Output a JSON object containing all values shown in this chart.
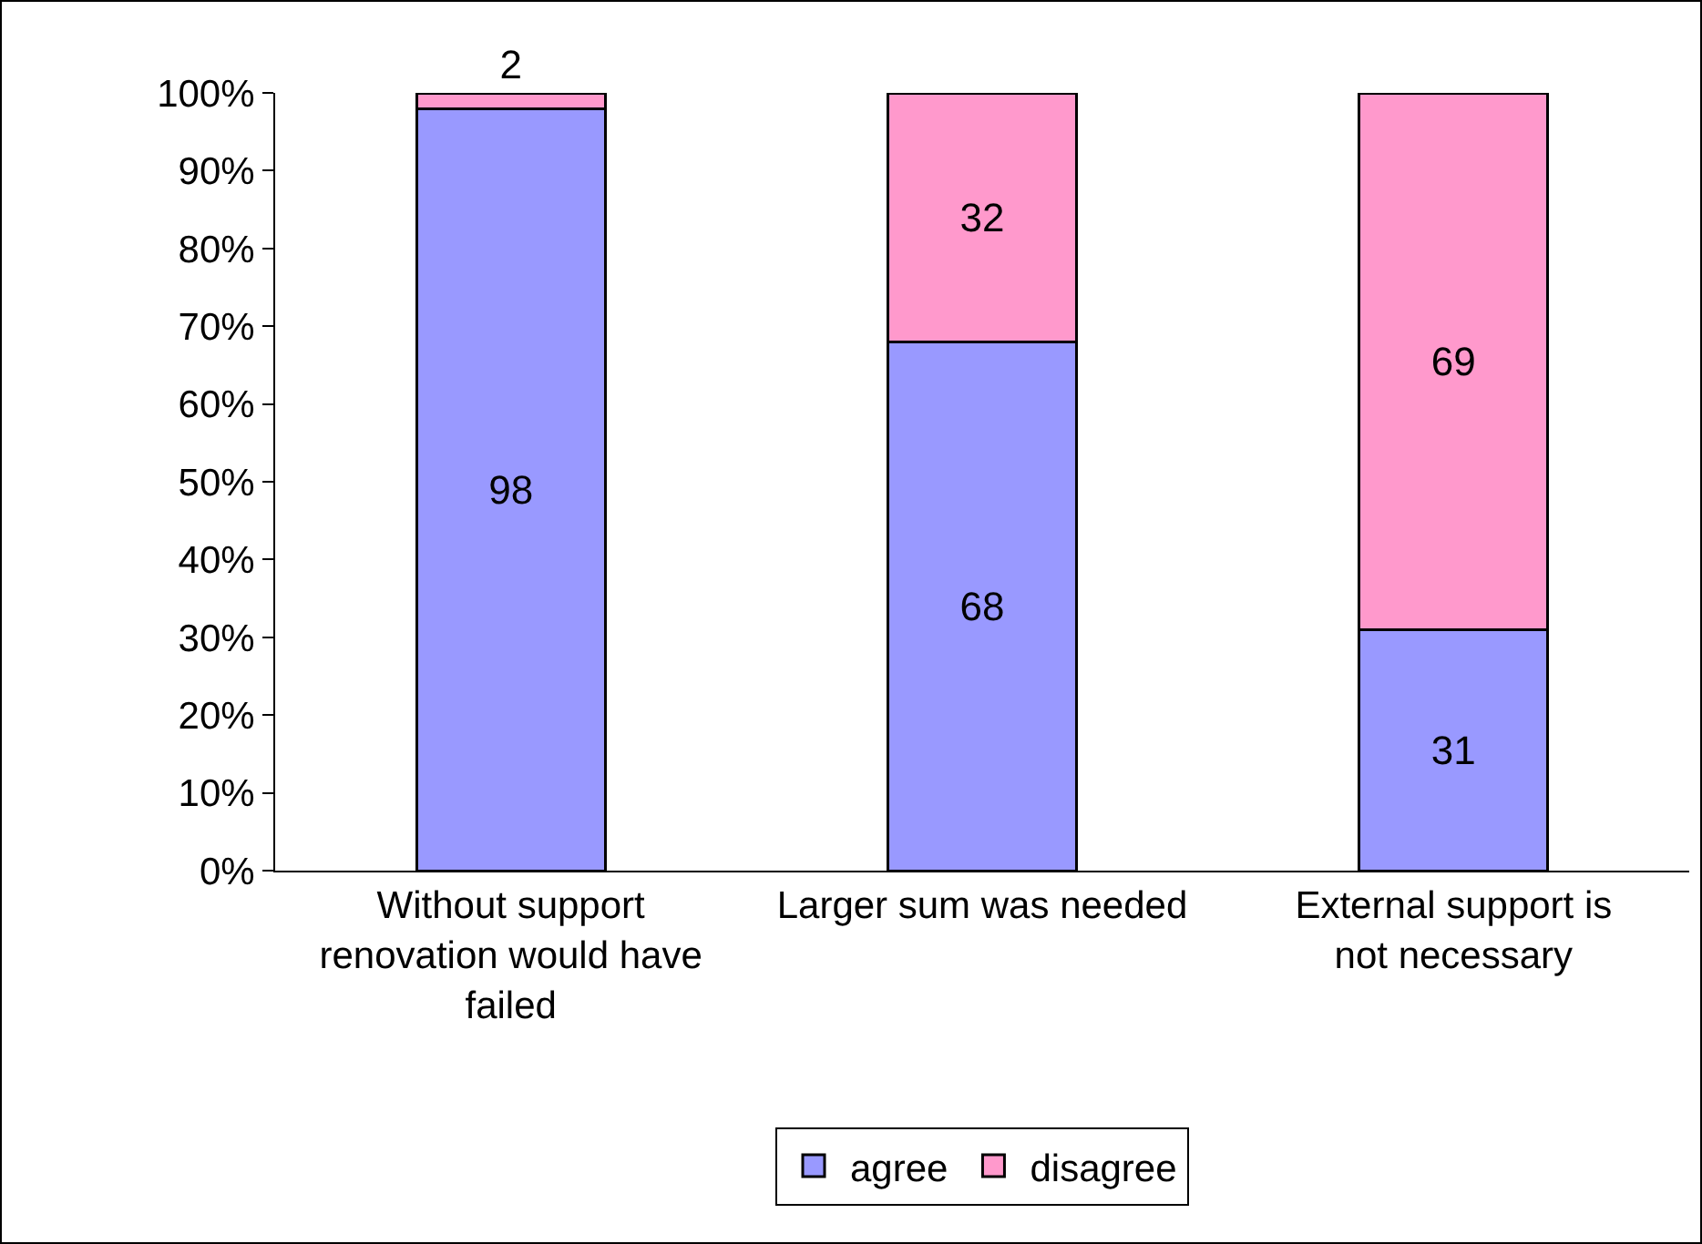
{
  "chart_data": {
    "type": "bar",
    "stacked": true,
    "categories": [
      "Without support renovation would have failed",
      "Larger sum was needed",
      "External support is not necessary"
    ],
    "series": [
      {
        "name": "agree",
        "color": "#9999ff",
        "values": [
          98,
          68,
          31
        ]
      },
      {
        "name": "disagree",
        "color": "#ff99cc",
        "values": [
          2,
          32,
          69
        ]
      }
    ],
    "ylim": [
      0,
      100
    ],
    "yticks": [
      {
        "value": 0,
        "label": "0%"
      },
      {
        "value": 10,
        "label": "10%"
      },
      {
        "value": 20,
        "label": "20%"
      },
      {
        "value": 30,
        "label": "30%"
      },
      {
        "value": 40,
        "label": "40%"
      },
      {
        "value": 50,
        "label": "50%"
      },
      {
        "value": 60,
        "label": "60%"
      },
      {
        "value": 70,
        "label": "70%"
      },
      {
        "value": 80,
        "label": "80%"
      },
      {
        "value": 90,
        "label": "90%"
      },
      {
        "value": 100,
        "label": "100%"
      }
    ],
    "data_labels": true,
    "grid": false,
    "legend": "bottom"
  }
}
